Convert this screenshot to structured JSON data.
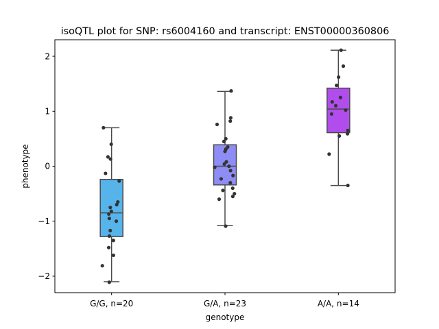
{
  "chart_data": {
    "type": "box",
    "title": "isoQTL plot for SNP: rs6004160 and transcript: ENST00000360806",
    "xlabel": "genotype",
    "ylabel": "phenotype",
    "ylim": [
      -2.3,
      2.3
    ],
    "yticks": [
      -2,
      -1,
      0,
      1,
      2
    ],
    "ytick_labels": [
      "−2",
      "−1",
      "0",
      "1",
      "2"
    ],
    "grid": false,
    "legend": "none",
    "groups": [
      {
        "label": "G/G, n=20",
        "color": "#56b4ea",
        "whisker_low": -2.1,
        "q1": -1.28,
        "median": -0.85,
        "q3": -0.24,
        "whisker_high": 0.7,
        "points": [
          0.7,
          0.4,
          0.17,
          0.13,
          -0.13,
          -0.27,
          -0.65,
          -0.7,
          -0.75,
          -0.82,
          -0.87,
          -0.95,
          -1.0,
          -1.17,
          -1.27,
          -1.35,
          -1.48,
          -1.62,
          -1.81,
          -2.11
        ]
      },
      {
        "label": "G/A, n=23",
        "color": "#8e8cf5",
        "whisker_low": -1.08,
        "q1": -0.34,
        "median": 0.0,
        "q3": 0.39,
        "whisker_high": 1.36,
        "points": [
          1.37,
          0.88,
          0.82,
          0.76,
          0.5,
          0.45,
          0.35,
          0.31,
          0.27,
          0.08,
          0.04,
          0.0,
          -0.02,
          -0.08,
          -0.17,
          -0.23,
          -0.3,
          -0.4,
          -0.44,
          -0.5,
          -0.55,
          -0.6,
          -1.09
        ]
      },
      {
        "label": "A/A, n=14",
        "color": "#b24ded",
        "whisker_low": -0.35,
        "q1": 0.61,
        "median": 1.04,
        "q3": 1.42,
        "whisker_high": 2.11,
        "points": [
          2.11,
          1.82,
          1.62,
          1.47,
          1.25,
          1.17,
          1.1,
          1.02,
          0.95,
          0.65,
          0.59,
          0.55,
          0.22,
          -0.35
        ]
      }
    ]
  }
}
